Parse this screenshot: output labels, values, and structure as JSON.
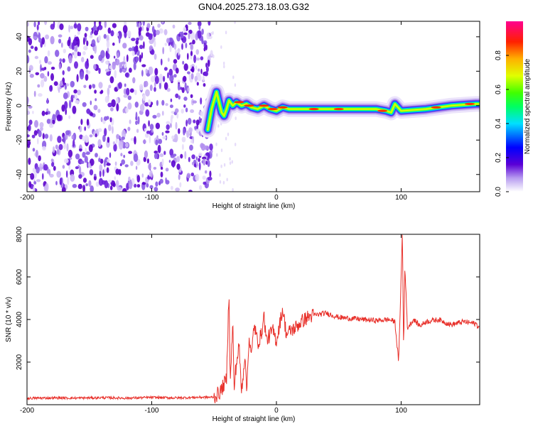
{
  "title": "GN04.2025.273.18.03.G32",
  "chart_data": [
    {
      "type": "heatmap",
      "name": "spectrogram",
      "xlabel": "Height of straight line (km)",
      "ylabel": "Frequency (Hz)",
      "xlim": [
        -200,
        163
      ],
      "ylim": [
        -50,
        49
      ],
      "x_ticks": [
        "-200",
        "-100",
        "0",
        "100"
      ],
      "x_tick_values": [
        -200,
        -100,
        0,
        100
      ],
      "y_ticks": [
        "40",
        "20",
        "0",
        "-20",
        "-40"
      ],
      "y_tick_values": [
        40,
        20,
        0,
        -20,
        -40
      ],
      "noise_region_x": [
        -200,
        -55
      ],
      "ridge": {
        "x": [
          -55,
          -52,
          -48,
          -46,
          -44,
          -42,
          -40,
          -38,
          -35,
          -32,
          -28,
          -24,
          -20,
          -15,
          -10,
          -5,
          0,
          5,
          10,
          20,
          40,
          60,
          80,
          88,
          92,
          95,
          100,
          120,
          140,
          160,
          163
        ],
        "freq": [
          -14,
          -2,
          8,
          2,
          -4,
          -6,
          -2,
          3,
          0,
          2,
          0,
          1,
          -1,
          -2,
          0,
          -2,
          -3,
          -1,
          -2,
          -2,
          -2,
          -2,
          -2,
          -3,
          -4,
          1,
          -3,
          -2,
          0,
          1,
          1
        ]
      },
      "colorbar": {
        "label": "Normalized spectral amplitude",
        "ticks": [
          "0.0",
          "0.2",
          "0.4",
          "0.6",
          "0.8"
        ],
        "tick_values": [
          0.0,
          0.2,
          0.4,
          0.6,
          0.8
        ],
        "range": [
          0,
          1
        ]
      }
    },
    {
      "type": "line",
      "name": "snr",
      "xlabel": "Height of straight line (km)",
      "ylabel": "SNR (10 * v/v)",
      "xlim": [
        -200,
        163
      ],
      "ylim": [
        0,
        8000
      ],
      "x_ticks": [
        "-200",
        "-100",
        "0",
        "100"
      ],
      "x_tick_values": [
        -200,
        -100,
        0,
        100
      ],
      "y_ticks": [
        "2000",
        "4000",
        "6000",
        "8000"
      ],
      "y_tick_values": [
        2000,
        4000,
        6000,
        8000
      ],
      "color": "#e8302a",
      "series": [
        {
          "name": "SNR",
          "x": [
            -200,
            -180,
            -160,
            -140,
            -120,
            -100,
            -80,
            -60,
            -50,
            -45,
            -40,
            -38,
            -37,
            -35,
            -34,
            -33,
            -30,
            -28,
            -25,
            -24,
            -22,
            -20,
            -18,
            -15,
            -12,
            -10,
            -8,
            -5,
            -3,
            0,
            5,
            8,
            10,
            12,
            15,
            20,
            25,
            30,
            40,
            50,
            60,
            70,
            80,
            90,
            95,
            98,
            100,
            101,
            102,
            103,
            105,
            110,
            115,
            120,
            130,
            140,
            150,
            160,
            163
          ],
          "y": [
            300,
            320,
            310,
            330,
            310,
            340,
            320,
            350,
            350,
            600,
            1200,
            5500,
            900,
            4000,
            600,
            1500,
            2800,
            600,
            2500,
            400,
            3200,
            2200,
            3800,
            2900,
            3300,
            4200,
            3000,
            3300,
            3500,
            3000,
            4500,
            3300,
            3400,
            3500,
            3600,
            3900,
            4100,
            4200,
            4300,
            4100,
            4050,
            4000,
            3950,
            4000,
            3900,
            2000,
            6000,
            8200,
            2500,
            6600,
            3600,
            4000,
            3700,
            3900,
            4000,
            3750,
            3900,
            3800,
            3600
          ]
        }
      ]
    }
  ]
}
